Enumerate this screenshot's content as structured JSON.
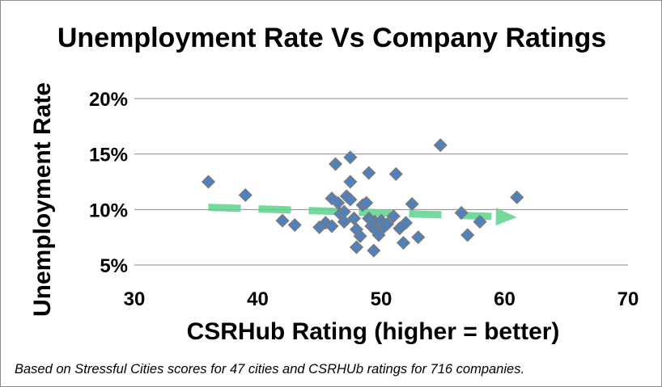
{
  "chart_data": {
    "type": "scatter",
    "title": "Unemployment Rate Vs Company Ratings",
    "xlabel": "CSRHub Rating (higher = better)",
    "ylabel": "Unemployment Rate",
    "xlim": [
      30,
      70
    ],
    "ylim": [
      5,
      20
    ],
    "x_ticks": [
      "30",
      "40",
      "50",
      "60",
      "70"
    ],
    "y_ticks": [
      "5%",
      "10%",
      "15%",
      "20%"
    ],
    "grid": "horizontal",
    "legend": "none",
    "marker_color": "#4f81bd",
    "marker_edge_color": "#7a7a7a",
    "trendline": {
      "style": "dashed-arrow",
      "color": "#5cd48a",
      "x": [
        36,
        61
      ],
      "y": [
        10.2,
        9.3
      ]
    },
    "series": [
      {
        "x": [
          36,
          39,
          42,
          43,
          45,
          45.5,
          46,
          46,
          46.3,
          46.5,
          46.7,
          47,
          47,
          47.2,
          47.5,
          47.5,
          47.5,
          47.8,
          48,
          48,
          48.3,
          48.5,
          48.8,
          49,
          49,
          49.2,
          49.4,
          49.5,
          49.6,
          49.8,
          50,
          50.2,
          50.5,
          51,
          51.2,
          51.5,
          51.8,
          52,
          52.5,
          53,
          54.8,
          56.5,
          57,
          58,
          61
        ],
        "y": [
          12.5,
          11.3,
          9.0,
          8.6,
          8.4,
          8.8,
          11.0,
          8.5,
          14.1,
          10.6,
          9.6,
          8.9,
          9.8,
          11.2,
          14.7,
          12.5,
          10.9,
          9.2,
          8.2,
          6.6,
          7.6,
          10.4,
          10.6,
          13.3,
          9.2,
          8.5,
          6.3,
          8.9,
          8.1,
          7.7,
          9.0,
          8.4,
          8.7,
          9.4,
          13.2,
          8.3,
          7.0,
          8.8,
          10.5,
          7.5,
          15.8,
          9.7,
          7.7,
          8.9,
          11.1
        ]
      }
    ]
  },
  "footnote": "Based on Stressful Cities scores for 47 cities and CSRHUb ratings for 716 companies."
}
